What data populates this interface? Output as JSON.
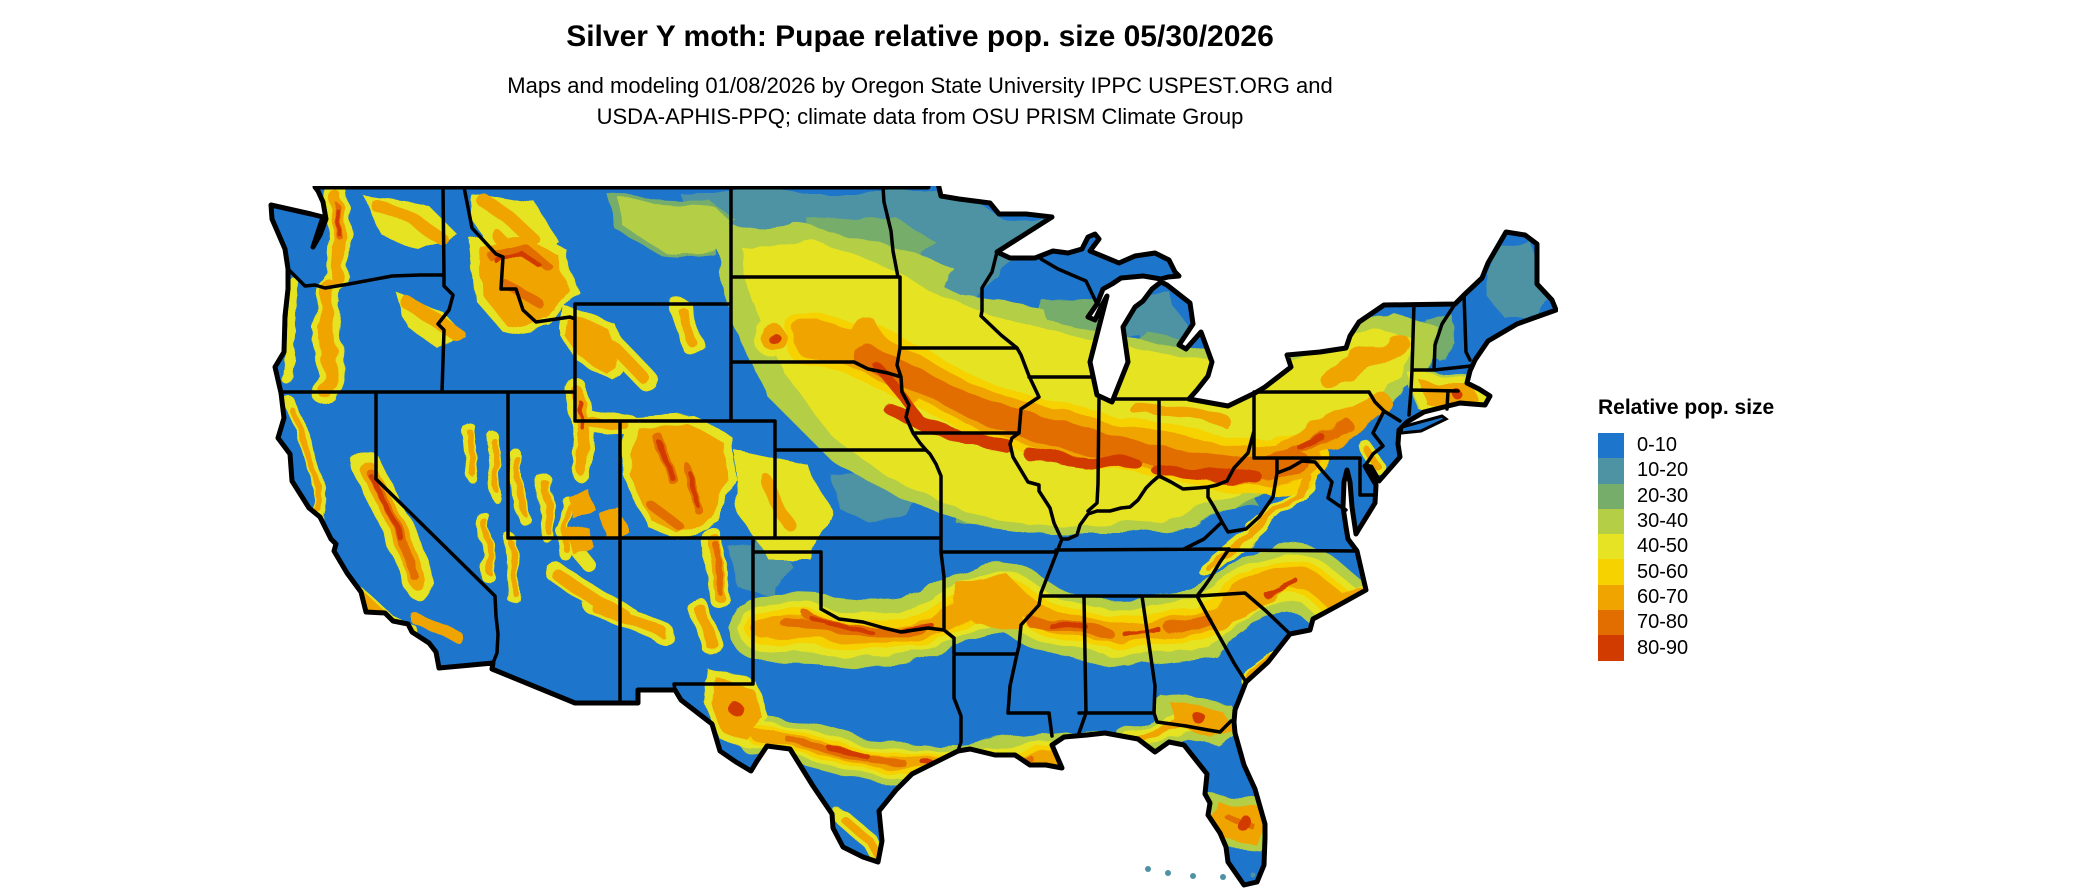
{
  "header": {
    "title": "Silver Y moth: Pupae relative pop. size 05/30/2026",
    "subtitle_line1": "Maps and modeling 01/08/2026 by Oregon State University IPPC USPEST.ORG and",
    "subtitle_line2": "USDA-APHIS-PPQ; climate data from OSU PRISM Climate Group"
  },
  "legend": {
    "title": "Relative pop. size",
    "classes": [
      {
        "label": "0-10",
        "color": "#1d76cb"
      },
      {
        "label": "10-20",
        "color": "#4e93a3"
      },
      {
        "label": "20-30",
        "color": "#76ad6b"
      },
      {
        "label": "30-40",
        "color": "#b4cf45"
      },
      {
        "label": "40-50",
        "color": "#e6e324"
      },
      {
        "label": "50-60",
        "color": "#f6d200"
      },
      {
        "label": "60-70",
        "color": "#f0a400"
      },
      {
        "label": "70-80",
        "color": "#e26e00"
      },
      {
        "label": "80-90",
        "color": "#d23b00"
      }
    ]
  },
  "map": {
    "region": "Conterminous United States",
    "border_color": "#000000",
    "background_color": "#ffffff",
    "base_fill_color": "#1d76cb"
  }
}
